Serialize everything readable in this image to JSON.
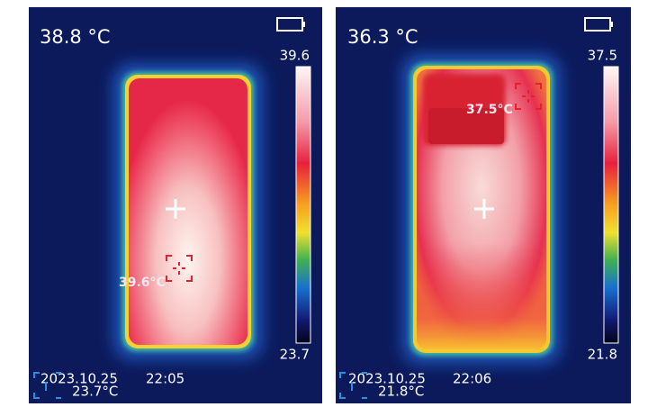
{
  "panels": [
    {
      "center_temp": "38.8 °C",
      "scale_max": "39.6",
      "scale_min": "23.7",
      "hot_spot": "39.6°C",
      "cold_spot": "23.7°C",
      "date": "2023.10.25",
      "time": "22:05"
    },
    {
      "center_temp": "36.3 °C",
      "scale_max": "37.5",
      "scale_min": "21.8",
      "hot_spot": "37.5°C",
      "cold_spot": "21.8°C",
      "date": "2023.10.25",
      "time": "22:06"
    }
  ]
}
